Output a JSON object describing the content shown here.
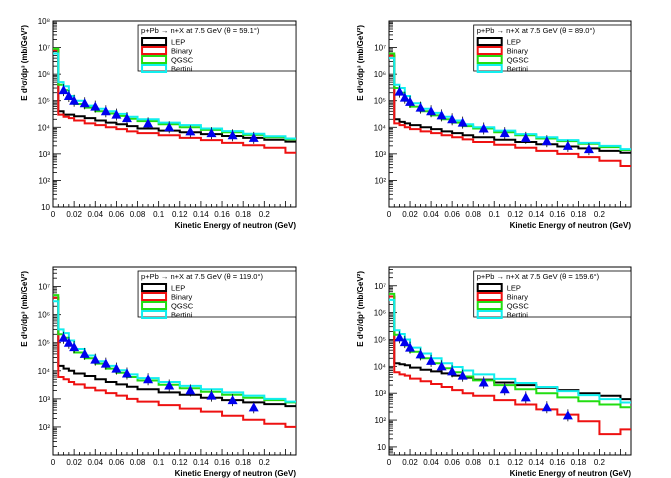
{
  "colors": {
    "LEP": "#000000",
    "Binary": "#ee1111",
    "QGSC": "#22dd11",
    "Bertini": "#11eeee",
    "data": "#0000ee"
  },
  "chart_data": [
    {
      "type": "line",
      "title": "p+Pb → n+X at 7.5 GeV (θ = 59.1°)",
      "xlabel": "Kinetic Energy of neutron (GeV)",
      "ylabel": "E d³σ/dp³ (mb/GeV²)",
      "xlim": [
        0,
        0.23
      ],
      "ylim": [
        10,
        100000000
      ],
      "log_y": true,
      "x_ticks": [
        "0",
        "0.02",
        "0.04",
        "0.06",
        "0.08",
        "0.1",
        "0.12",
        "0.14",
        "0.16",
        "0.18",
        "0.2"
      ],
      "y_ticks": [
        "10",
        "10²",
        "10³",
        "10⁴",
        "10⁵",
        "10⁶",
        "10⁷",
        "10⁸"
      ],
      "legend": [
        "LEP",
        "Binary",
        "QGSC",
        "Bertini"
      ],
      "legend_position": "top-right",
      "edges": [
        0,
        0.005,
        0.01,
        0.015,
        0.02,
        0.03,
        0.04,
        0.05,
        0.06,
        0.07,
        0.08,
        0.1,
        0.12,
        0.14,
        0.16,
        0.18,
        0.2,
        0.22,
        0.23
      ],
      "series": [
        {
          "name": "LEP",
          "values": [
            8000000,
            40000,
            30000,
            30000,
            26000,
            22000,
            18000,
            15000,
            13000,
            11000,
            9000,
            7500,
            6500,
            5500,
            4700,
            4000,
            3400,
            2900
          ]
        },
        {
          "name": "Binary",
          "values": [
            8000000,
            30000,
            25000,
            22000,
            18000,
            14000,
            12000,
            10000,
            8500,
            7000,
            6000,
            5000,
            4000,
            3300,
            2600,
            2100,
            1700,
            1100
          ]
        },
        {
          "name": "QGSC",
          "values": [
            9000000,
            400000,
            250000,
            120000,
            75000,
            55000,
            40000,
            33000,
            27000,
            21000,
            17000,
            13000,
            10000,
            8000,
            6500,
            5200,
            4200,
            3500
          ]
        },
        {
          "name": "Bertini",
          "values": [
            6000000,
            500000,
            350000,
            150000,
            100000,
            65000,
            50000,
            40000,
            32000,
            25000,
            20000,
            15000,
            12000,
            9000,
            7200,
            5700,
            4600,
            3800
          ]
        }
      ],
      "points": {
        "x": [
          0.01,
          0.015,
          0.02,
          0.03,
          0.04,
          0.05,
          0.06,
          0.07,
          0.09,
          0.11,
          0.13,
          0.15,
          0.17,
          0.19
        ],
        "y": [
          250000,
          150000,
          100000,
          80000,
          60000,
          40000,
          30000,
          22000,
          14000,
          10000,
          7000,
          6000,
          5000,
          4000
        ]
      }
    },
    {
      "type": "line",
      "title": "p+Pb → n+X at 7.5 GeV (θ = 89.0°)",
      "xlabel": "Kinetic Energy of neutron (GeV)",
      "ylabel": "E d³σ/dp³ (mb/GeV²)",
      "xlim": [
        0,
        0.23
      ],
      "ylim": [
        10,
        100000000
      ],
      "log_y": true,
      "x_ticks": [
        "0",
        "0.02",
        "0.04",
        "0.06",
        "0.08",
        "0.1",
        "0.12",
        "0.14",
        "0.16",
        "0.18",
        "0.2"
      ],
      "y_ticks": [
        "10²",
        "10³",
        "10⁴",
        "10⁵",
        "10⁶",
        "10⁷"
      ],
      "legend": [
        "LEP",
        "Binary",
        "QGSC",
        "Bertini"
      ],
      "legend_position": "top-right",
      "edges": [
        0,
        0.005,
        0.01,
        0.015,
        0.02,
        0.03,
        0.04,
        0.05,
        0.06,
        0.07,
        0.08,
        0.1,
        0.12,
        0.14,
        0.16,
        0.18,
        0.2,
        0.22,
        0.23
      ],
      "series": [
        {
          "name": "LEP",
          "values": [
            5000000,
            20000,
            16000,
            14000,
            12000,
            10000,
            8500,
            7000,
            6000,
            5000,
            4200,
            3400,
            2800,
            2300,
            1900,
            1600,
            1300,
            1100
          ]
        },
        {
          "name": "Binary",
          "values": [
            5000000,
            14000,
            12000,
            10000,
            8500,
            7000,
            6000,
            5000,
            4200,
            3500,
            2800,
            2200,
            1700,
            1300,
            1000,
            750,
            550,
            350
          ]
        },
        {
          "name": "QGSC",
          "values": [
            6000000,
            300000,
            200000,
            100000,
            60000,
            40000,
            28000,
            20000,
            15000,
            11000,
            9000,
            6500,
            5000,
            3800,
            3000,
            2400,
            1800,
            1400
          ]
        },
        {
          "name": "Bertini",
          "values": [
            4000000,
            400000,
            300000,
            150000,
            80000,
            50000,
            35000,
            25000,
            18000,
            13000,
            10000,
            7500,
            5500,
            4200,
            3300,
            2600,
            2000,
            1500
          ]
        }
      ],
      "points": {
        "x": [
          0.01,
          0.015,
          0.02,
          0.03,
          0.04,
          0.05,
          0.06,
          0.07,
          0.09,
          0.11,
          0.13,
          0.15,
          0.17,
          0.19
        ],
        "y": [
          220000,
          130000,
          90000,
          55000,
          40000,
          28000,
          20000,
          15000,
          9000,
          6000,
          4000,
          3000,
          2000,
          1500
        ]
      }
    },
    {
      "type": "line",
      "title": "p+Pb → n+X at 7.5 GeV (θ = 119.0°)",
      "xlabel": "Kinetic Energy of neutron (GeV)",
      "ylabel": "E d³σ/dp³ (mb/GeV²)",
      "xlim": [
        0,
        0.23
      ],
      "ylim": [
        10,
        50000000
      ],
      "log_y": true,
      "x_ticks": [
        "0",
        "0.02",
        "0.04",
        "0.06",
        "0.08",
        "0.1",
        "0.12",
        "0.14",
        "0.16",
        "0.18",
        "0.2"
      ],
      "y_ticks": [
        "10²",
        "10³",
        "10⁴",
        "10⁵",
        "10⁶",
        "10⁷"
      ],
      "legend": [
        "LEP",
        "Binary",
        "QGSC",
        "Bertini"
      ],
      "legend_position": "top-right",
      "edges": [
        0,
        0.005,
        0.01,
        0.015,
        0.02,
        0.03,
        0.04,
        0.05,
        0.06,
        0.07,
        0.08,
        0.1,
        0.12,
        0.14,
        0.16,
        0.18,
        0.2,
        0.22,
        0.23
      ],
      "series": [
        {
          "name": "LEP",
          "values": [
            4000000,
            15000,
            12000,
            10000,
            8000,
            6500,
            5000,
            4000,
            3300,
            2700,
            2200,
            1700,
            1400,
            1100,
            900,
            750,
            650,
            550
          ]
        },
        {
          "name": "Binary",
          "values": [
            4000000,
            6000,
            5000,
            4000,
            3300,
            2500,
            2000,
            1600,
            1300,
            1000,
            800,
            600,
            450,
            350,
            250,
            180,
            130,
            100
          ]
        },
        {
          "name": "QGSC",
          "values": [
            5000000,
            200000,
            150000,
            80000,
            45000,
            28000,
            18000,
            12000,
            8500,
            6000,
            4500,
            3200,
            2400,
            1800,
            1400,
            1100,
            900,
            750
          ]
        },
        {
          "name": "Bertini",
          "values": [
            3000000,
            300000,
            220000,
            120000,
            60000,
            35000,
            22000,
            15000,
            10500,
            7500,
            5500,
            4000,
            2900,
            2200,
            1700,
            1300,
            1000,
            800
          ]
        }
      ],
      "points": {
        "x": [
          0.01,
          0.015,
          0.02,
          0.03,
          0.04,
          0.05,
          0.06,
          0.07,
          0.09,
          0.11,
          0.13,
          0.15,
          0.17,
          0.19
        ],
        "y": [
          150000,
          100000,
          70000,
          40000,
          25000,
          18000,
          12000,
          8000,
          5000,
          3000,
          2000,
          1300,
          900,
          500
        ]
      }
    },
    {
      "type": "line",
      "title": "p+Pb → n+X at 7.5 GeV (θ = 159.6°)",
      "xlabel": "Kinetic Energy of neutron (GeV)",
      "ylabel": "E d³σ/dp³ (mb/GeV²)",
      "xlim": [
        0,
        0.23
      ],
      "ylim": [
        5,
        50000000
      ],
      "log_y": true,
      "x_ticks": [
        "0",
        "0.02",
        "0.04",
        "0.06",
        "0.08",
        "0.1",
        "0.12",
        "0.14",
        "0.16",
        "0.18",
        "0.2"
      ],
      "y_ticks": [
        "10",
        "10²",
        "10³",
        "10⁴",
        "10⁵",
        "10⁶",
        "10⁷"
      ],
      "legend": [
        "LEP",
        "Binary",
        "QGSC",
        "Bertini"
      ],
      "legend_position": "top-right",
      "edges": [
        0,
        0.005,
        0.01,
        0.015,
        0.02,
        0.03,
        0.04,
        0.05,
        0.06,
        0.07,
        0.08,
        0.1,
        0.12,
        0.14,
        0.16,
        0.18,
        0.2,
        0.22,
        0.23
      ],
      "series": [
        {
          "name": "LEP",
          "values": [
            4000000,
            13000,
            12000,
            11000,
            9000,
            7500,
            6500,
            5500,
            4500,
            3800,
            3200,
            2500,
            2000,
            1600,
            1300,
            1000,
            800,
            600
          ]
        },
        {
          "name": "Binary",
          "values": [
            4000000,
            6000,
            5000,
            4500,
            3500,
            2800,
            2200,
            1700,
            1300,
            1000,
            800,
            550,
            380,
            250,
            160,
            90,
            30,
            45
          ]
        },
        {
          "name": "QGSC",
          "values": [
            5000000,
            150000,
            100000,
            60000,
            35000,
            20000,
            13000,
            8500,
            6000,
            4200,
            3000,
            2000,
            1400,
            1000,
            700,
            500,
            380,
            300
          ]
        },
        {
          "name": "Bertini",
          "values": [
            3000000,
            220000,
            160000,
            100000,
            50000,
            30000,
            20000,
            13000,
            9500,
            7000,
            5000,
            3400,
            2400,
            1700,
            1200,
            850,
            600,
            450
          ]
        }
      ],
      "points": {
        "x": [
          0.01,
          0.015,
          0.02,
          0.03,
          0.04,
          0.05,
          0.06,
          0.07,
          0.09,
          0.11,
          0.13,
          0.15,
          0.17
        ],
        "y": [
          120000,
          80000,
          50000,
          28000,
          16000,
          10000,
          6500,
          4500,
          2500,
          1400,
          700,
          300,
          150
        ]
      }
    }
  ]
}
